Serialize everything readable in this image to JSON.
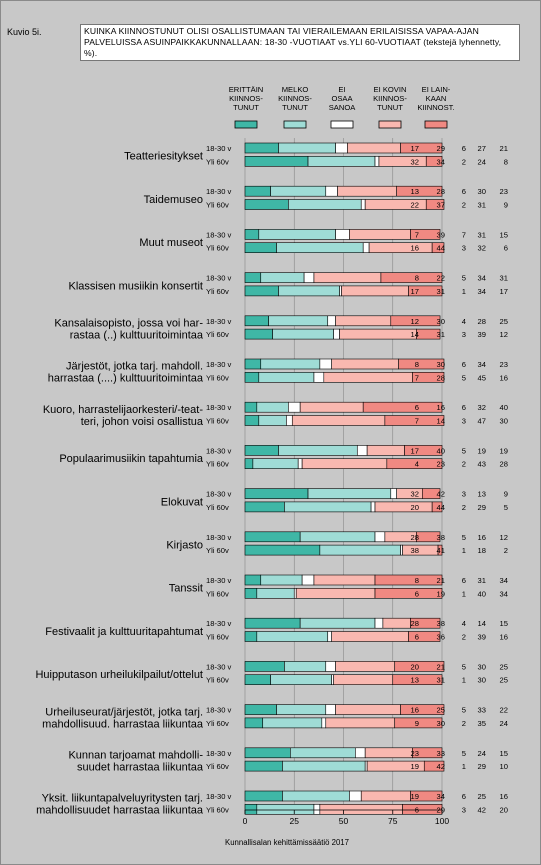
{
  "figure_label": "Kuvio 5i.",
  "title": "KUINKA KIINNOSTUNUT OLISI OSALLISTUMAAN TAI VIERAILEMAAN ERILAISISSA VAPAA-AJAN PALVELUISSA ASUINPAIKKAKUNNALLAAN: 18-30 -VUOTIAAT vs.YLI 60-VUOTIAAT (tekstejä lyhennetty, %).",
  "source": "Kunnallisalan kehittämissäätiö 2017",
  "colors": {
    "background": "#c8c8c8",
    "seg1": "#3fb7a6",
    "seg2": "#9fdcd6",
    "seg3": "#ffffff",
    "seg4": "#f9b8b0",
    "seg5": "#f08982"
  },
  "chart_data": {
    "type": "bar",
    "stacked": true,
    "orientation": "horizontal",
    "xlim": [
      0,
      100
    ],
    "xticks": [
      0,
      25,
      50,
      75,
      100
    ],
    "legend": [
      {
        "label": "ERITTÄIN KIINNOS-TUNUT",
        "color": "#3fb7a6"
      },
      {
        "label": "MELKO KIINNOS-TUNUT",
        "color": "#9fdcd6"
      },
      {
        "label": "EI OSAA SANOA",
        "color": "#ffffff"
      },
      {
        "label": "EI KOVIN KIINNOS-TUNUT",
        "color": "#f9b8b0"
      },
      {
        "label": "EI LAIN-KAAN KIINNOST.",
        "color": "#f08982"
      }
    ],
    "groups": [
      "18-30 v",
      "Yli 60v"
    ],
    "categories": [
      {
        "label": "Teatteriesitykset",
        "rows": [
          [
            17,
            29,
            6,
            27,
            21
          ],
          [
            32,
            34,
            2,
            24,
            8
          ]
        ]
      },
      {
        "label": "Taidemuseo",
        "rows": [
          [
            13,
            28,
            6,
            30,
            23
          ],
          [
            22,
            37,
            2,
            31,
            9
          ]
        ]
      },
      {
        "label": "Muut museot",
        "rows": [
          [
            7,
            39,
            7,
            31,
            15
          ],
          [
            16,
            44,
            3,
            32,
            6
          ]
        ]
      },
      {
        "label": "Klassisen musiikin konsertit",
        "rows": [
          [
            8,
            22,
            5,
            34,
            31
          ],
          [
            17,
            31,
            1,
            34,
            17
          ]
        ]
      },
      {
        "label": "Kansalaisopisto, jossa voi harrastaa (..) kulttuuritoimintaa",
        "rows": [
          [
            12,
            30,
            4,
            28,
            25
          ],
          [
            14,
            31,
            3,
            39,
            12
          ]
        ]
      },
      {
        "label": "Järjestöt, jotka tarj. mahdoll. harrastaa (....) kulttuuritoimintaa",
        "rows": [
          [
            8,
            30,
            6,
            34,
            23
          ],
          [
            7,
            28,
            5,
            45,
            16
          ]
        ]
      },
      {
        "label": "Kuoro, harrastelijaorkesteri/-teatteri, johon voisi osallistua",
        "rows": [
          [
            6,
            16,
            6,
            32,
            40
          ],
          [
            7,
            14,
            3,
            47,
            30
          ]
        ]
      },
      {
        "label": "Populaarimusiikin tapahtumia",
        "rows": [
          [
            17,
            40,
            5,
            19,
            19
          ],
          [
            4,
            23,
            2,
            43,
            28
          ]
        ]
      },
      {
        "label": "Elokuvat",
        "rows": [
          [
            32,
            42,
            3,
            13,
            9
          ],
          [
            20,
            44,
            2,
            29,
            5
          ]
        ]
      },
      {
        "label": "Kirjasto",
        "rows": [
          [
            28,
            38,
            5,
            16,
            12
          ],
          [
            38,
            41,
            1,
            18,
            2
          ]
        ]
      },
      {
        "label": "Tanssit",
        "rows": [
          [
            8,
            21,
            6,
            31,
            34
          ],
          [
            6,
            19,
            1,
            40,
            34
          ]
        ]
      },
      {
        "label": "Festivaalit ja kulttuuritapahtumat",
        "rows": [
          [
            28,
            38,
            4,
            14,
            15
          ],
          [
            6,
            36,
            2,
            39,
            16
          ]
        ]
      },
      {
        "label": "Huipputason urheilukilpailut/ottelut",
        "rows": [
          [
            20,
            21,
            5,
            30,
            25
          ],
          [
            13,
            31,
            1,
            30,
            25
          ]
        ]
      },
      {
        "label": "Urheiluseurat/järjestöt, jotka tarj. mahdollisuud. harrastaa liikuntaa",
        "rows": [
          [
            16,
            25,
            5,
            33,
            22
          ],
          [
            9,
            30,
            2,
            35,
            24
          ]
        ]
      },
      {
        "label": "Kunnan tarjoamat mahdollisuudet harrastaa liikuntaa",
        "rows": [
          [
            23,
            33,
            5,
            24,
            15
          ],
          [
            19,
            42,
            1,
            29,
            10
          ]
        ]
      },
      {
        "label": "Yksit. liikuntapalveluyritysten tarj. mahdollisuudet harrastaa liikuntaa",
        "rows": [
          [
            19,
            34,
            6,
            25,
            16
          ],
          [
            6,
            29,
            3,
            42,
            20
          ]
        ]
      }
    ]
  },
  "display_labels": [
    [
      "Teatteriesitykset"
    ],
    [
      "Taidemuseo"
    ],
    [
      "Muut museot"
    ],
    [
      "Klassisen musiikin konsertit"
    ],
    [
      "Kansalaisopisto, jossa voi har-",
      "rastaa (..) kulttuuritoimintaa"
    ],
    [
      "Järjestöt, jotka tarj. mahdoll.",
      "harrastaa (....) kulttuuritoimintaa"
    ],
    [
      "Kuoro, harrastelijaorkesteri/-teat-",
      "teri, johon voisi osallistua"
    ],
    [
      "Populaarimusiikin tapahtumia"
    ],
    [
      "Elokuvat"
    ],
    [
      "Kirjasto"
    ],
    [
      "Tanssit"
    ],
    [
      "Festivaalit ja kulttuuritapahtumat"
    ],
    [
      "Huipputason urheilukilpailut/ottelut"
    ],
    [
      "Urheiluseurat/järjestöt, jotka tarj.",
      "mahdollisuud. harrastaa liikuntaa"
    ],
    [
      "Kunnan tarjoamat mahdolli-",
      "suudet harrastaa liikuntaa"
    ],
    [
      "Yksit. liikuntapalveluyritysten tarj.",
      "mahdollisuudet harrastaa liikuntaa"
    ]
  ],
  "legend_display": [
    [
      "ERITTÄIN",
      "KIINNOS-",
      "TUNUT"
    ],
    [
      "MELKO",
      "KIINNOS-",
      "TUNUT"
    ],
    [
      "EI",
      "OSAA",
      "SANOA"
    ],
    [
      "EI KOVIN",
      "KIINNOS-",
      "TUNUT"
    ],
    [
      "EI LAIN-",
      "KAAN",
      "KIINNOST."
    ]
  ]
}
